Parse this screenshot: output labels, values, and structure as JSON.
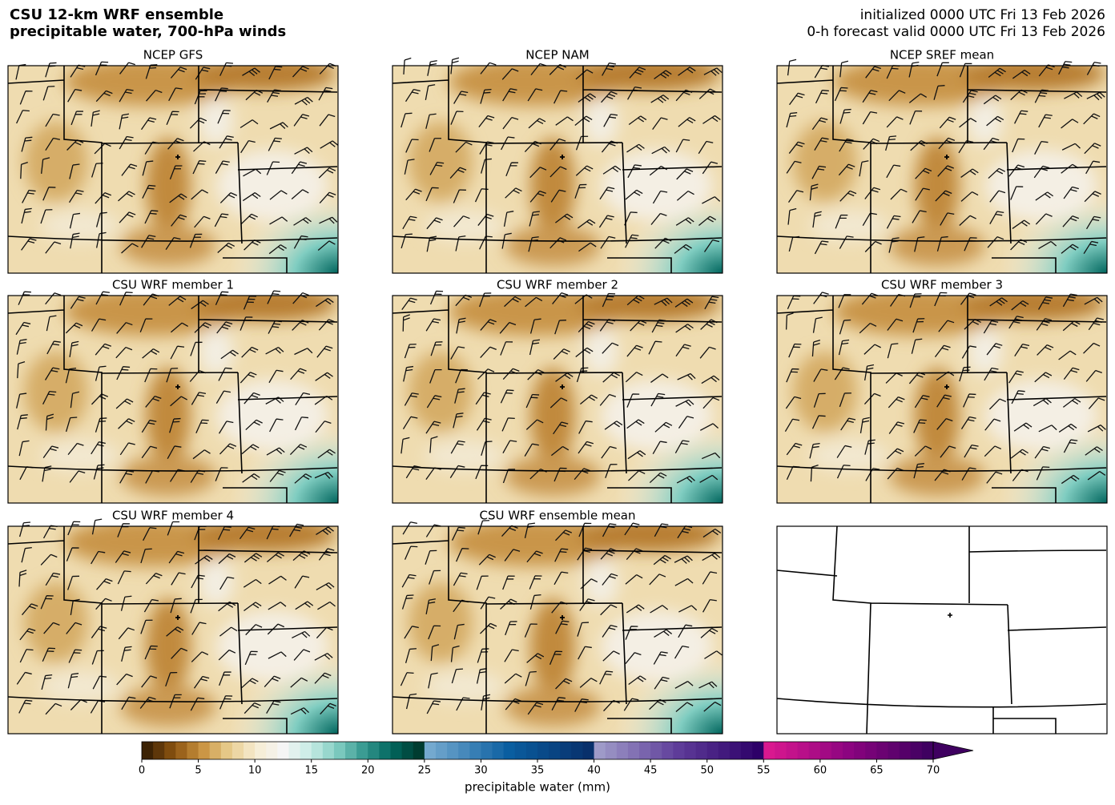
{
  "header": {
    "title": [
      "CSU 12-km WRF ensemble",
      "precipitable water, 700-hPa winds"
    ],
    "valid": [
      "initialized 0000 UTC Fri 13 Feb 2026",
      "0-h forecast valid 0000 UTC Fri 13 Feb 2026"
    ]
  },
  "panels": [
    {
      "title": "NCEP GFS"
    },
    {
      "title": "NCEP NAM"
    },
    {
      "title": "NCEP SREF mean"
    },
    {
      "title": "CSU WRF member 1"
    },
    {
      "title": "CSU WRF member 2"
    },
    {
      "title": "CSU WRF member 3"
    },
    {
      "title": "CSU WRF member 4"
    },
    {
      "title": "CSU WRF ensemble mean"
    }
  ],
  "colorbar": {
    "label": "precipitable water (mm)",
    "lim": [
      0,
      70
    ],
    "ticks": [
      0,
      5,
      10,
      15,
      20,
      25,
      30,
      35,
      40,
      45,
      50,
      55,
      60,
      65,
      70
    ],
    "bounds": [
      0,
      25,
      40,
      55,
      70
    ],
    "segments": [
      [
        "#3d2305",
        "#8c5410",
        "#c8913e",
        "#e8cd8e",
        "#f6ecd2",
        "#f5f5f5",
        "#c8ebe5",
        "#80cdc1",
        "#35978f",
        "#01665e",
        "#003c30"
      ],
      [
        "#74a9cf",
        "#0a5ea0",
        "#08306b"
      ],
      [
        "#9e9ac8",
        "#5e3c99",
        "#2d0068"
      ],
      [
        "#d9188f",
        "#8c0480",
        "#3f0060"
      ]
    ],
    "extend_color": "#3f0060"
  }
}
